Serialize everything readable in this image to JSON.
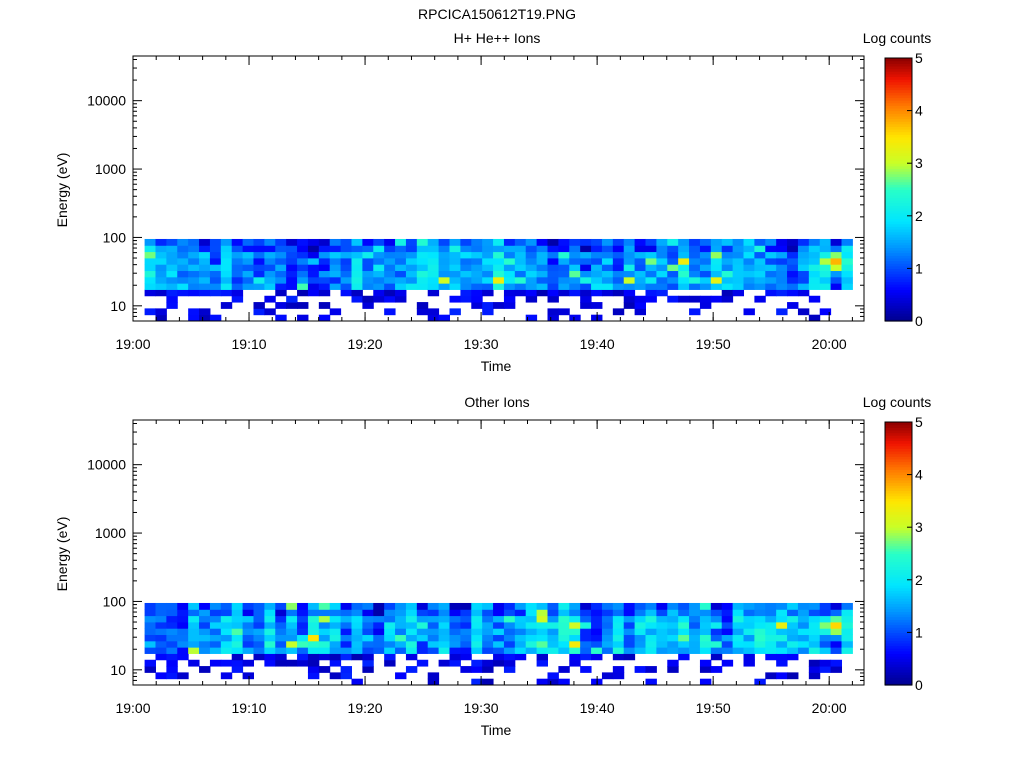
{
  "figure_title": "RPCICA150612T19.PNG",
  "chart_data": [
    {
      "type": "heatmap",
      "title": "H+ He++ Ions",
      "xlabel": "Time",
      "ylabel": "Energy (eV)",
      "x_ticks": [
        "19:00",
        "19:10",
        "19:20",
        "19:30",
        "19:40",
        "19:50",
        "20:00"
      ],
      "x_range": [
        "19:00",
        "20:03"
      ],
      "y_scale": "log",
      "y_ticks": [
        10,
        100,
        1000,
        10000
      ],
      "y_range": [
        6,
        45000
      ],
      "colorbar": {
        "label": "Log counts",
        "ticks": [
          0,
          1,
          2,
          3,
          4,
          5
        ],
        "range": [
          0,
          5
        ],
        "colormap": "rainbow"
      },
      "data_extent": {
        "time_start": "19:01",
        "time_end": "20:02",
        "energy_min": 6,
        "energy_max": 95,
        "time_bins": 65,
        "energy_bins": 13
      },
      "hotspot": {
        "time": "20:00",
        "energy": 40,
        "value": 3.8
      },
      "seed": 7
    },
    {
      "type": "heatmap",
      "title": "Other Ions",
      "xlabel": "Time",
      "ylabel": "Energy (eV)",
      "x_ticks": [
        "19:00",
        "19:10",
        "19:20",
        "19:30",
        "19:40",
        "19:50",
        "20:00"
      ],
      "x_range": [
        "19:00",
        "20:03"
      ],
      "y_scale": "log",
      "y_ticks": [
        10,
        100,
        1000,
        10000
      ],
      "y_range": [
        6,
        45000
      ],
      "colorbar": {
        "label": "Log counts",
        "ticks": [
          0,
          1,
          2,
          3,
          4,
          5
        ],
        "range": [
          0,
          5
        ],
        "colormap": "rainbow"
      },
      "data_extent": {
        "time_start": "19:01",
        "time_end": "20:02",
        "energy_min": 6,
        "energy_max": 95,
        "time_bins": 65,
        "energy_bins": 13
      },
      "hotspot": {
        "time": "20:00",
        "energy": 40,
        "value": 3.6
      },
      "seed": 19
    }
  ]
}
